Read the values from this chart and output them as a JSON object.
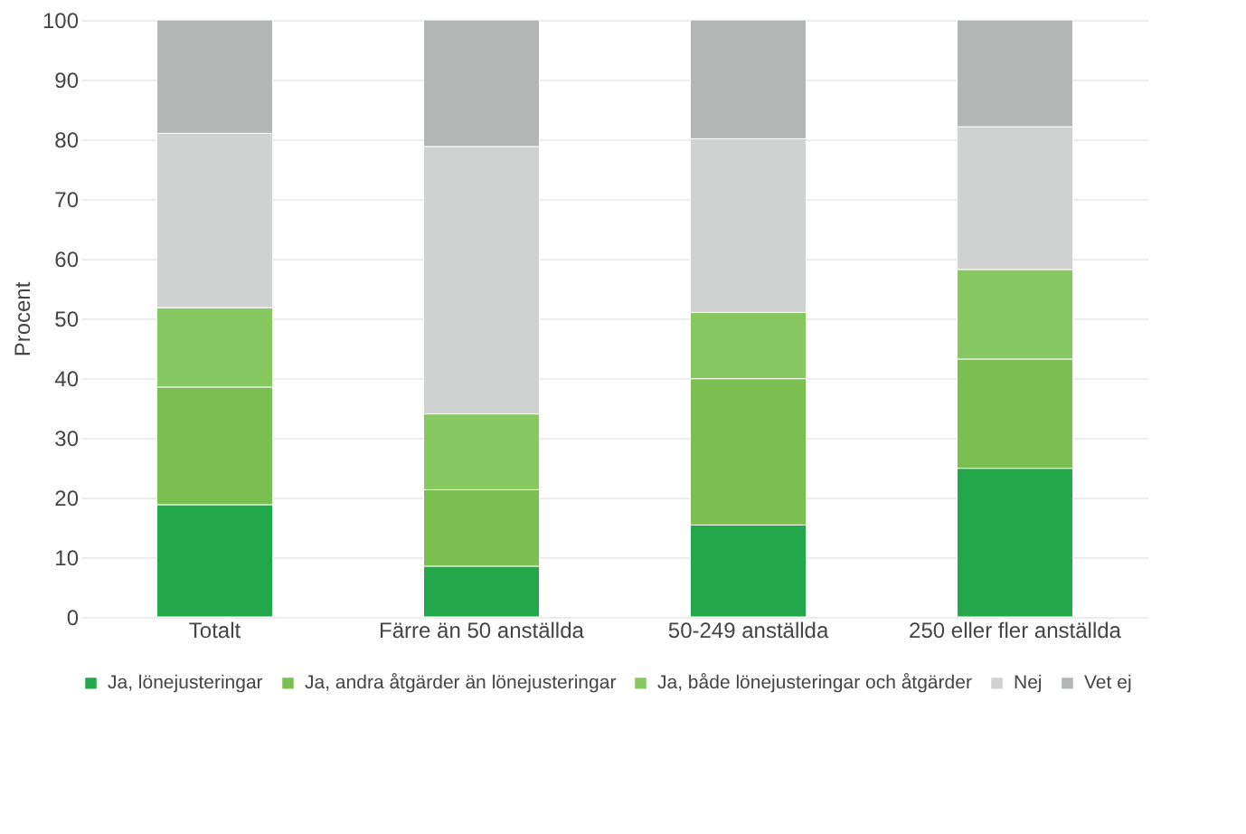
{
  "chart_data": {
    "type": "bar",
    "stacked": true,
    "ylabel": "Procent",
    "categories": [
      "Totalt",
      "Färre än 50 anställda",
      "50-249 anställda",
      "250 eller fler anställda"
    ],
    "series": [
      {
        "name": "Ja, lönejusteringar",
        "color": "#22a84a",
        "values": [
          18.8,
          8.5,
          15.4,
          24.9
        ]
      },
      {
        "name": "Ja, andra åtgärder än lönejusteringar",
        "color": "#7abf50",
        "values": [
          19.7,
          12.8,
          24.5,
          18.3
        ]
      },
      {
        "name": "Ja, både lönejusteringar och åtgärder",
        "color": "#88c860",
        "values": [
          13.3,
          12.7,
          11.1,
          15.0
        ]
      },
      {
        "name": "Nej",
        "color": "#d0d2d1",
        "values": [
          29.2,
          44.8,
          29.1,
          23.9
        ]
      },
      {
        "name": "Vet ej",
        "color": "#b3b6b5",
        "values": [
          19.0,
          21.2,
          19.9,
          17.9
        ]
      }
    ],
    "ylim": [
      0,
      100
    ],
    "yticks": [
      0,
      10,
      20,
      30,
      40,
      50,
      60,
      70,
      80,
      90,
      100
    ],
    "grid": "y",
    "legend": "bottom"
  }
}
